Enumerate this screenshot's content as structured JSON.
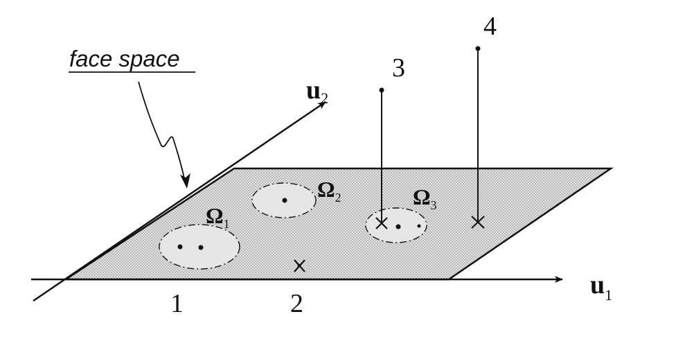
{
  "diagram": {
    "caption_label": "face space",
    "axes": {
      "u1": "u",
      "u1_sub": "1",
      "u2": "u",
      "u2_sub": "2"
    },
    "classes": [
      {
        "symbol": "Ω",
        "sub": "1"
      },
      {
        "symbol": "Ω",
        "sub": "2"
      },
      {
        "symbol": "Ω",
        "sub": "3"
      }
    ],
    "points": [
      "1",
      "2",
      "3",
      "4"
    ],
    "colors": {
      "ink": "#111111",
      "plane_fill": "#cfcfcf"
    }
  }
}
